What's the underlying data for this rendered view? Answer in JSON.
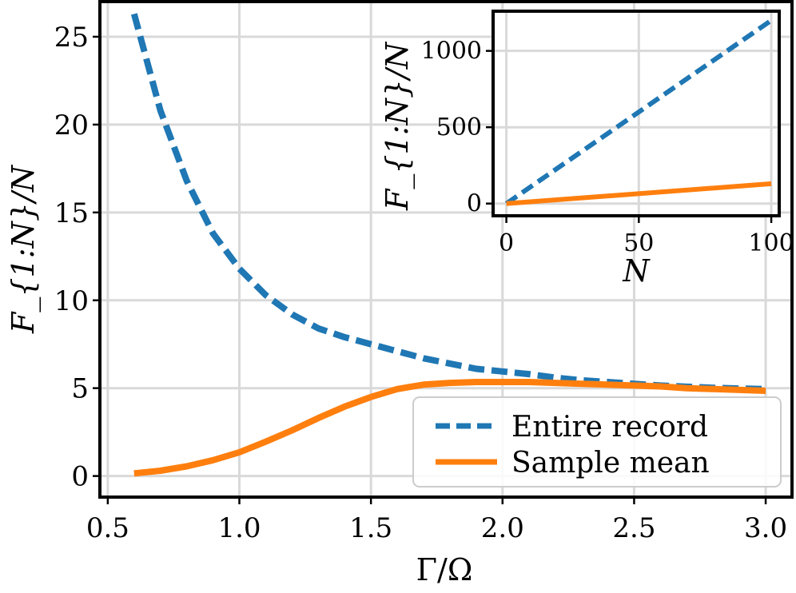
{
  "chart_data": [
    {
      "type": "line",
      "xlabel": "Γ/Ω",
      "ylabel": "F_{1:N}/N",
      "xlim": [
        0.47,
        3.1
      ],
      "ylim": [
        -1.2,
        27.0
      ],
      "xticks": [
        0.5,
        1.0,
        1.5,
        2.0,
        2.5,
        3.0
      ],
      "xtick_labels": [
        "0.5",
        "1.0",
        "1.5",
        "2.0",
        "2.5",
        "3.0"
      ],
      "yticks": [
        0,
        5,
        10,
        15,
        20,
        25
      ],
      "ytick_labels": [
        "0",
        "5",
        "10",
        "15",
        "20",
        "25"
      ],
      "grid": true,
      "legend_position": "lower-right",
      "series": [
        {
          "name": "Entire record",
          "style": "dashed",
          "color": "#1f77b4",
          "x": [
            0.6,
            0.7,
            0.8,
            0.9,
            1.0,
            1.1,
            1.2,
            1.3,
            1.4,
            1.5,
            1.6,
            1.7,
            1.8,
            1.9,
            2.0,
            2.1,
            2.2,
            2.3,
            2.4,
            2.5,
            2.6,
            2.7,
            2.8,
            2.9,
            3.0
          ],
          "y": [
            26.3,
            20.8,
            16.8,
            13.8,
            11.8,
            10.3,
            9.2,
            8.4,
            7.9,
            7.5,
            7.1,
            6.7,
            6.4,
            6.1,
            5.95,
            5.8,
            5.6,
            5.45,
            5.35,
            5.25,
            5.15,
            5.08,
            5.02,
            4.98,
            4.95
          ]
        },
        {
          "name": "Sample mean",
          "style": "solid",
          "color": "#ff7f0e",
          "x": [
            0.6,
            0.7,
            0.8,
            0.9,
            1.0,
            1.1,
            1.2,
            1.3,
            1.4,
            1.5,
            1.6,
            1.7,
            1.8,
            1.9,
            2.0,
            2.1,
            2.2,
            2.3,
            2.4,
            2.5,
            2.6,
            2.7,
            2.8,
            2.9,
            3.0
          ],
          "y": [
            0.15,
            0.3,
            0.55,
            0.9,
            1.35,
            1.95,
            2.6,
            3.3,
            3.95,
            4.5,
            4.95,
            5.2,
            5.3,
            5.35,
            5.35,
            5.35,
            5.3,
            5.25,
            5.2,
            5.15,
            5.1,
            5.0,
            4.95,
            4.9,
            4.85
          ]
        }
      ]
    },
    {
      "type": "line",
      "xlabel": "N",
      "ylabel": "F_{1:N}/N",
      "xlim": [
        -5,
        103
      ],
      "ylim": [
        -80,
        1260
      ],
      "xticks": [
        0,
        50,
        100
      ],
      "xtick_labels": [
        "0",
        "50",
        "100"
      ],
      "yticks": [
        0,
        500,
        1000
      ],
      "ytick_labels": [
        "0",
        "500",
        "1000"
      ],
      "grid": true,
      "series": [
        {
          "name": "Entire record",
          "style": "dashed",
          "color": "#1f77b4",
          "x": [
            0,
            100
          ],
          "y": [
            0,
            1200
          ]
        },
        {
          "name": "Sample mean",
          "style": "solid",
          "color": "#ff7f0e",
          "x": [
            0,
            100
          ],
          "y": [
            0,
            130
          ]
        }
      ]
    }
  ]
}
